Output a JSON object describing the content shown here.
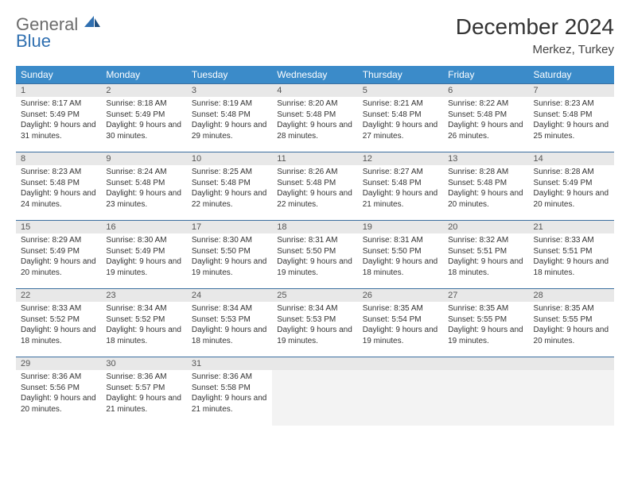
{
  "brand": {
    "part1": "General",
    "part2": "Blue"
  },
  "title": "December 2024",
  "location": "Merkez, Turkey",
  "colors": {
    "header_bg": "#3b8bc9",
    "header_text": "#ffffff",
    "row_divider": "#3b6fa0",
    "daynum_bg": "#e8e8e8",
    "text": "#333333",
    "brand_gray": "#6b6b6b",
    "brand_blue": "#2f6fb0"
  },
  "day_headers": [
    "Sunday",
    "Monday",
    "Tuesday",
    "Wednesday",
    "Thursday",
    "Friday",
    "Saturday"
  ],
  "weeks": [
    [
      {
        "num": "1",
        "sunrise": "Sunrise: 8:17 AM",
        "sunset": "Sunset: 5:49 PM",
        "daylight": "Daylight: 9 hours and 31 minutes."
      },
      {
        "num": "2",
        "sunrise": "Sunrise: 8:18 AM",
        "sunset": "Sunset: 5:49 PM",
        "daylight": "Daylight: 9 hours and 30 minutes."
      },
      {
        "num": "3",
        "sunrise": "Sunrise: 8:19 AM",
        "sunset": "Sunset: 5:48 PM",
        "daylight": "Daylight: 9 hours and 29 minutes."
      },
      {
        "num": "4",
        "sunrise": "Sunrise: 8:20 AM",
        "sunset": "Sunset: 5:48 PM",
        "daylight": "Daylight: 9 hours and 28 minutes."
      },
      {
        "num": "5",
        "sunrise": "Sunrise: 8:21 AM",
        "sunset": "Sunset: 5:48 PM",
        "daylight": "Daylight: 9 hours and 27 minutes."
      },
      {
        "num": "6",
        "sunrise": "Sunrise: 8:22 AM",
        "sunset": "Sunset: 5:48 PM",
        "daylight": "Daylight: 9 hours and 26 minutes."
      },
      {
        "num": "7",
        "sunrise": "Sunrise: 8:23 AM",
        "sunset": "Sunset: 5:48 PM",
        "daylight": "Daylight: 9 hours and 25 minutes."
      }
    ],
    [
      {
        "num": "8",
        "sunrise": "Sunrise: 8:23 AM",
        "sunset": "Sunset: 5:48 PM",
        "daylight": "Daylight: 9 hours and 24 minutes."
      },
      {
        "num": "9",
        "sunrise": "Sunrise: 8:24 AM",
        "sunset": "Sunset: 5:48 PM",
        "daylight": "Daylight: 9 hours and 23 minutes."
      },
      {
        "num": "10",
        "sunrise": "Sunrise: 8:25 AM",
        "sunset": "Sunset: 5:48 PM",
        "daylight": "Daylight: 9 hours and 22 minutes."
      },
      {
        "num": "11",
        "sunrise": "Sunrise: 8:26 AM",
        "sunset": "Sunset: 5:48 PM",
        "daylight": "Daylight: 9 hours and 22 minutes."
      },
      {
        "num": "12",
        "sunrise": "Sunrise: 8:27 AM",
        "sunset": "Sunset: 5:48 PM",
        "daylight": "Daylight: 9 hours and 21 minutes."
      },
      {
        "num": "13",
        "sunrise": "Sunrise: 8:28 AM",
        "sunset": "Sunset: 5:48 PM",
        "daylight": "Daylight: 9 hours and 20 minutes."
      },
      {
        "num": "14",
        "sunrise": "Sunrise: 8:28 AM",
        "sunset": "Sunset: 5:49 PM",
        "daylight": "Daylight: 9 hours and 20 minutes."
      }
    ],
    [
      {
        "num": "15",
        "sunrise": "Sunrise: 8:29 AM",
        "sunset": "Sunset: 5:49 PM",
        "daylight": "Daylight: 9 hours and 20 minutes."
      },
      {
        "num": "16",
        "sunrise": "Sunrise: 8:30 AM",
        "sunset": "Sunset: 5:49 PM",
        "daylight": "Daylight: 9 hours and 19 minutes."
      },
      {
        "num": "17",
        "sunrise": "Sunrise: 8:30 AM",
        "sunset": "Sunset: 5:50 PM",
        "daylight": "Daylight: 9 hours and 19 minutes."
      },
      {
        "num": "18",
        "sunrise": "Sunrise: 8:31 AM",
        "sunset": "Sunset: 5:50 PM",
        "daylight": "Daylight: 9 hours and 19 minutes."
      },
      {
        "num": "19",
        "sunrise": "Sunrise: 8:31 AM",
        "sunset": "Sunset: 5:50 PM",
        "daylight": "Daylight: 9 hours and 18 minutes."
      },
      {
        "num": "20",
        "sunrise": "Sunrise: 8:32 AM",
        "sunset": "Sunset: 5:51 PM",
        "daylight": "Daylight: 9 hours and 18 minutes."
      },
      {
        "num": "21",
        "sunrise": "Sunrise: 8:33 AM",
        "sunset": "Sunset: 5:51 PM",
        "daylight": "Daylight: 9 hours and 18 minutes."
      }
    ],
    [
      {
        "num": "22",
        "sunrise": "Sunrise: 8:33 AM",
        "sunset": "Sunset: 5:52 PM",
        "daylight": "Daylight: 9 hours and 18 minutes."
      },
      {
        "num": "23",
        "sunrise": "Sunrise: 8:34 AM",
        "sunset": "Sunset: 5:52 PM",
        "daylight": "Daylight: 9 hours and 18 minutes."
      },
      {
        "num": "24",
        "sunrise": "Sunrise: 8:34 AM",
        "sunset": "Sunset: 5:53 PM",
        "daylight": "Daylight: 9 hours and 18 minutes."
      },
      {
        "num": "25",
        "sunrise": "Sunrise: 8:34 AM",
        "sunset": "Sunset: 5:53 PM",
        "daylight": "Daylight: 9 hours and 19 minutes."
      },
      {
        "num": "26",
        "sunrise": "Sunrise: 8:35 AM",
        "sunset": "Sunset: 5:54 PM",
        "daylight": "Daylight: 9 hours and 19 minutes."
      },
      {
        "num": "27",
        "sunrise": "Sunrise: 8:35 AM",
        "sunset": "Sunset: 5:55 PM",
        "daylight": "Daylight: 9 hours and 19 minutes."
      },
      {
        "num": "28",
        "sunrise": "Sunrise: 8:35 AM",
        "sunset": "Sunset: 5:55 PM",
        "daylight": "Daylight: 9 hours and 20 minutes."
      }
    ],
    [
      {
        "num": "29",
        "sunrise": "Sunrise: 8:36 AM",
        "sunset": "Sunset: 5:56 PM",
        "daylight": "Daylight: 9 hours and 20 minutes."
      },
      {
        "num": "30",
        "sunrise": "Sunrise: 8:36 AM",
        "sunset": "Sunset: 5:57 PM",
        "daylight": "Daylight: 9 hours and 21 minutes."
      },
      {
        "num": "31",
        "sunrise": "Sunrise: 8:36 AM",
        "sunset": "Sunset: 5:58 PM",
        "daylight": "Daylight: 9 hours and 21 minutes."
      },
      null,
      null,
      null,
      null
    ]
  ]
}
